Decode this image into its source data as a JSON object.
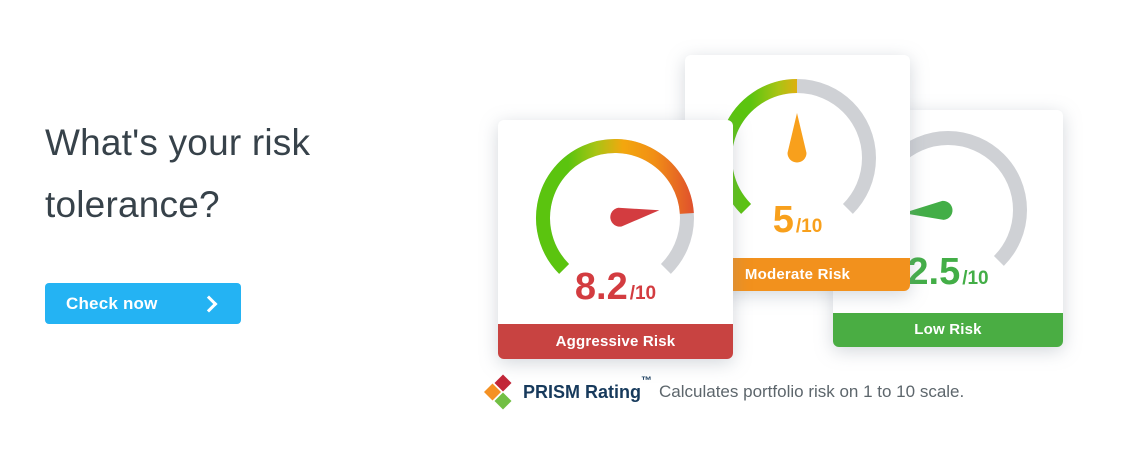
{
  "hero": {
    "title_line1": "What's your risk",
    "title_line2": "tolerance?",
    "cta_label": "Check now"
  },
  "caption": {
    "brand": "PRISM Rating",
    "trademark": "™",
    "text": "Calculates portfolio risk on 1 to 10 scale.",
    "logo_colors": [
      "#c32638",
      "#f49123",
      "#72bf44"
    ]
  },
  "gauge_style": {
    "track_color": "#cfd1d5",
    "arc_gradient": [
      [
        "0%",
        "#5bc40f"
      ],
      [
        "20%",
        "#5bc40f"
      ],
      [
        "38%",
        "#a9c414"
      ],
      [
        "55%",
        "#f3a70e"
      ],
      [
        "75%",
        "#f18f15"
      ],
      [
        "100%",
        "#e0512d"
      ]
    ]
  },
  "chart_data": [
    {
      "type": "gauge",
      "label": "Aggressive Risk",
      "value": 8.2,
      "max": 10,
      "display": "8.2",
      "suffix": "/10",
      "needle_deg": 10,
      "accent_color": "#d33c40",
      "footer_color": "#c84341"
    },
    {
      "type": "gauge",
      "label": "Moderate Risk",
      "value": 5,
      "max": 10,
      "display": "5",
      "suffix": "/10",
      "needle_deg": 90,
      "accent_color": "#f8a01c",
      "footer_color": "#f2911d"
    },
    {
      "type": "gauge",
      "label": "Low Risk",
      "value": 2.5,
      "max": 10,
      "display": "2.5",
      "suffix": "/10",
      "needle_deg": 184,
      "accent_color": "#43ae47",
      "footer_color": "#4aad43"
    }
  ],
  "colors": {
    "cta_background": "#24b3f3",
    "heading_text": "#37424a",
    "caption_brand": "#173a5c",
    "caption_text": "#5d666c"
  }
}
